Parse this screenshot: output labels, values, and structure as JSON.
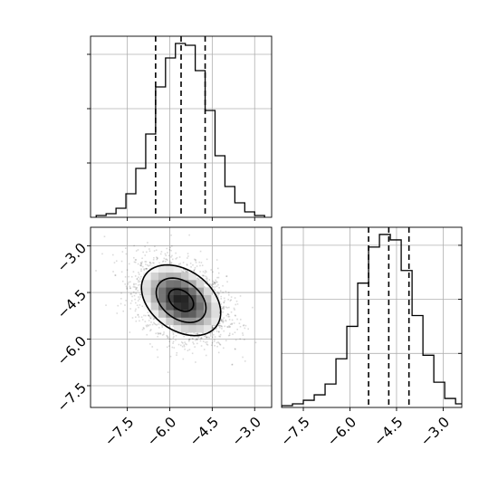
{
  "chart_data": {
    "type": "corner",
    "grid": true,
    "panels": [
      {
        "panel": "top-left",
        "type": "histogram",
        "variable": "x",
        "bin_edges": [
          -8.6,
          -8.25,
          -7.9,
          -7.55,
          -7.2,
          -6.85,
          -6.5,
          -6.15,
          -5.8,
          -5.45,
          -5.1,
          -4.75,
          -4.4,
          -4.05,
          -3.7,
          -3.35,
          -3.0,
          -2.65
        ],
        "counts": [
          1,
          2,
          5,
          13,
          27,
          46,
          72,
          88,
          96,
          95,
          81,
          59,
          34,
          17,
          8,
          3,
          1
        ],
        "quantiles": [
          -6.5,
          -5.6,
          -4.75
        ],
        "xlim": [
          -8.8,
          -2.4
        ],
        "ylim": [
          0,
          100
        ],
        "xticks": [
          -7.5,
          -6.0,
          -4.5,
          -3.0
        ],
        "yticks": [
          30,
          60,
          90
        ]
      },
      {
        "panel": "bottom-left",
        "type": "2d-histogram-contour",
        "x_variable": "x",
        "y_variable": "y",
        "center": [
          -5.6,
          -4.75
        ],
        "spread": [
          0.8,
          0.65
        ],
        "correlation": -0.35,
        "contour_levels": [
          "inner",
          "middle",
          "outer"
        ],
        "xlim": [
          -8.8,
          -2.4
        ],
        "ylim": [
          -8.2,
          -2.4
        ],
        "xticks": [
          -7.5,
          -6.0,
          -4.5,
          -3.0
        ],
        "xtick_labels": [
          "−7.5",
          "−6.0",
          "−4.5",
          "−3.0"
        ],
        "yticks": [
          -7.5,
          -6.0,
          -4.5,
          -3.0
        ],
        "ytick_labels": [
          "−7.5",
          "−6.0",
          "−4.5",
          "−3.0"
        ]
      },
      {
        "panel": "bottom-right",
        "type": "histogram",
        "variable": "y",
        "bin_edges": [
          -8.2,
          -7.85,
          -7.5,
          -7.15,
          -6.8,
          -6.45,
          -6.1,
          -5.75,
          -5.4,
          -5.05,
          -4.7,
          -4.35,
          -4.0,
          -3.65,
          -3.3,
          -2.95,
          -2.6,
          -2.25
        ],
        "counts": [
          1,
          2,
          4,
          7,
          13,
          27,
          45,
          69,
          89,
          96,
          93,
          76,
          51,
          29,
          14,
          5,
          2
        ],
        "quantiles": [
          -5.4,
          -4.75,
          -4.1
        ],
        "xlim": [
          -8.2,
          -2.4
        ],
        "ylim": [
          0,
          100
        ],
        "xticks": [
          -7.5,
          -6.0,
          -4.5,
          -3.0
        ],
        "xtick_labels": [
          "−7.5",
          "−6.0",
          "−4.5",
          "−3.0"
        ],
        "yticks": [
          30,
          60,
          90
        ]
      }
    ]
  }
}
